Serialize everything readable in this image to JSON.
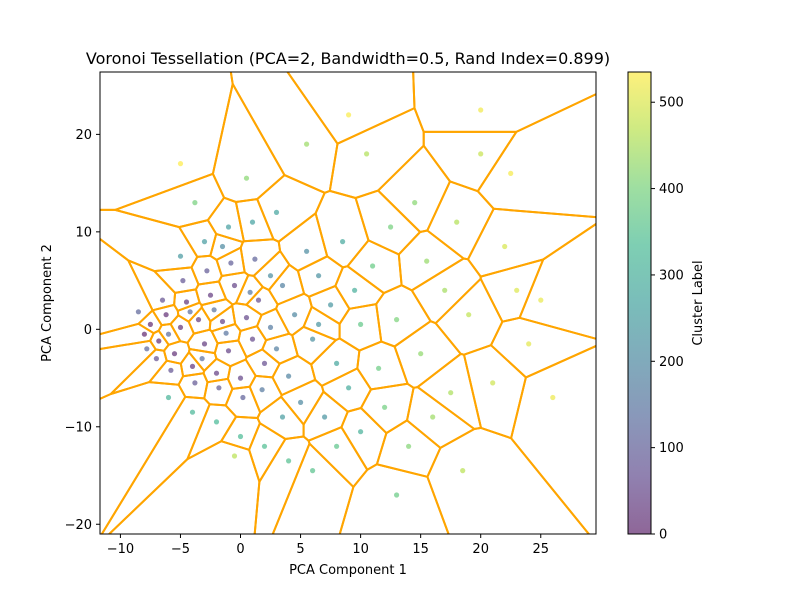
{
  "chart_data": {
    "type": "scatter",
    "title": "Voronoi Tessellation (PCA=2, Bandwidth=0.5, Rand Index=0.899)",
    "xlabel": "PCA Component 1",
    "ylabel": "PCA Component 2",
    "xlim": [
      -11.7,
      29.6
    ],
    "ylim": [
      -21.0,
      26.4
    ],
    "xticks": [
      -10,
      -5,
      0,
      5,
      10,
      15,
      20,
      25
    ],
    "yticks": [
      -20,
      -10,
      0,
      10,
      20
    ],
    "grid": false,
    "colorbar": {
      "label": "Cluster Label",
      "colormap": "viridis",
      "range": [
        0,
        535
      ],
      "ticks": [
        0,
        100,
        200,
        300,
        400,
        500
      ]
    },
    "voronoi_edge_color": "#ffa500",
    "point_alpha": 0.6,
    "points": [
      [
        -8.0,
        -0.5,
        2
      ],
      [
        -7.5,
        0.5,
        5
      ],
      [
        -6.8,
        -1.2,
        8
      ],
      [
        -6.2,
        1.5,
        12
      ],
      [
        -5.5,
        -2.5,
        15
      ],
      [
        -5.0,
        0.2,
        18
      ],
      [
        -4.5,
        2.8,
        22
      ],
      [
        -4.0,
        -3.8,
        25
      ],
      [
        -3.5,
        1.0,
        28
      ],
      [
        -3.0,
        -1.5,
        31
      ],
      [
        -2.5,
        3.5,
        35
      ],
      [
        -2.0,
        -4.5,
        38
      ],
      [
        -1.5,
        0.8,
        41
      ],
      [
        -1.0,
        -2.2,
        45
      ],
      [
        -0.5,
        4.5,
        48
      ],
      [
        0.0,
        -5.0,
        52
      ],
      [
        0.5,
        1.2,
        55
      ],
      [
        1.0,
        -1.0,
        58
      ],
      [
        1.5,
        3.0,
        62
      ],
      [
        2.0,
        -3.5,
        65
      ],
      [
        -7.0,
        -3.0,
        70
      ],
      [
        -6.5,
        3.0,
        74
      ],
      [
        -5.8,
        -4.2,
        78
      ],
      [
        -4.8,
        5.0,
        82
      ],
      [
        -3.8,
        -5.5,
        86
      ],
      [
        -2.8,
        6.0,
        90
      ],
      [
        -1.8,
        -6.0,
        95
      ],
      [
        -0.8,
        6.8,
        100
      ],
      [
        0.2,
        -7.0,
        105
      ],
      [
        1.2,
        7.2,
        110
      ],
      [
        -8.5,
        1.8,
        115
      ],
      [
        -7.8,
        -2.0,
        120
      ],
      [
        -6.0,
        -0.5,
        126
      ],
      [
        -4.2,
        1.8,
        132
      ],
      [
        -3.2,
        -3.0,
        138
      ],
      [
        -2.2,
        2.0,
        144
      ],
      [
        -1.2,
        -0.4,
        150
      ],
      [
        0.8,
        3.8,
        156
      ],
      [
        1.8,
        -6.2,
        162
      ],
      [
        2.5,
        0.2,
        168
      ],
      [
        3.0,
        -2.0,
        175
      ],
      [
        3.5,
        4.5,
        182
      ],
      [
        4.0,
        -4.8,
        189
      ],
      [
        4.5,
        1.5,
        196
      ],
      [
        5.0,
        -7.5,
        203
      ],
      [
        5.5,
        8.0,
        210
      ],
      [
        6.0,
        -1.0,
        217
      ],
      [
        6.5,
        5.5,
        224
      ],
      [
        7.0,
        -9.0,
        231
      ],
      [
        7.5,
        2.5,
        238
      ],
      [
        -5.0,
        7.5,
        245
      ],
      [
        -3.0,
        9.0,
        252
      ],
      [
        -1.0,
        10.5,
        259
      ],
      [
        1.0,
        11.0,
        266
      ],
      [
        3.0,
        12.0,
        273
      ],
      [
        8.0,
        -3.5,
        280
      ],
      [
        8.5,
        9.0,
        287
      ],
      [
        9.0,
        -6.0,
        294
      ],
      [
        9.5,
        4.0,
        301
      ],
      [
        10.0,
        -10.5,
        308
      ],
      [
        -6.0,
        -7.0,
        315
      ],
      [
        -4.0,
        -8.5,
        322
      ],
      [
        -2.0,
        -9.5,
        329
      ],
      [
        0.0,
        -11.0,
        336
      ],
      [
        2.0,
        -12.0,
        343
      ],
      [
        4.0,
        -13.5,
        350
      ],
      [
        6.0,
        -14.5,
        357
      ],
      [
        8.0,
        -12.0,
        364
      ],
      [
        10.0,
        0.5,
        371
      ],
      [
        11.0,
        6.5,
        378
      ],
      [
        11.5,
        -4.0,
        385
      ],
      [
        12.0,
        -8.0,
        392
      ],
      [
        12.5,
        10.5,
        399
      ],
      [
        13.0,
        1.0,
        406
      ],
      [
        14.0,
        -12.0,
        413
      ],
      [
        14.5,
        13.0,
        420
      ],
      [
        15.0,
        -2.5,
        427
      ],
      [
        15.5,
        7.0,
        434
      ],
      [
        16.0,
        -9.0,
        441
      ],
      [
        17.0,
        4.0,
        448
      ],
      [
        17.5,
        -6.5,
        455
      ],
      [
        18.0,
        11.0,
        462
      ],
      [
        18.5,
        -14.5,
        469
      ],
      [
        19.0,
        1.5,
        476
      ],
      [
        20.0,
        18.0,
        483
      ],
      [
        21.0,
        -5.5,
        490
      ],
      [
        22.0,
        8.5,
        497
      ],
      [
        23.0,
        4.0,
        503
      ],
      [
        24.0,
        -1.5,
        509
      ],
      [
        25.0,
        3.0,
        515
      ],
      [
        26.0,
        -7.0,
        520
      ],
      [
        20.0,
        22.5,
        524
      ],
      [
        22.5,
        16.0,
        528
      ],
      [
        9.0,
        22.0,
        532
      ],
      [
        -5.0,
        17.0,
        535
      ],
      [
        -3.8,
        13.0,
        400
      ],
      [
        0.5,
        15.5,
        420
      ],
      [
        5.5,
        19.0,
        440
      ],
      [
        10.5,
        18.0,
        460
      ],
      [
        13.0,
        -17.0,
        380
      ],
      [
        -0.5,
        -13.0,
        470
      ],
      [
        3.5,
        -9.0,
        250
      ],
      [
        6.5,
        0.5,
        230
      ],
      [
        2.5,
        5.5,
        215
      ],
      [
        -1.5,
        8.5,
        205
      ]
    ]
  }
}
